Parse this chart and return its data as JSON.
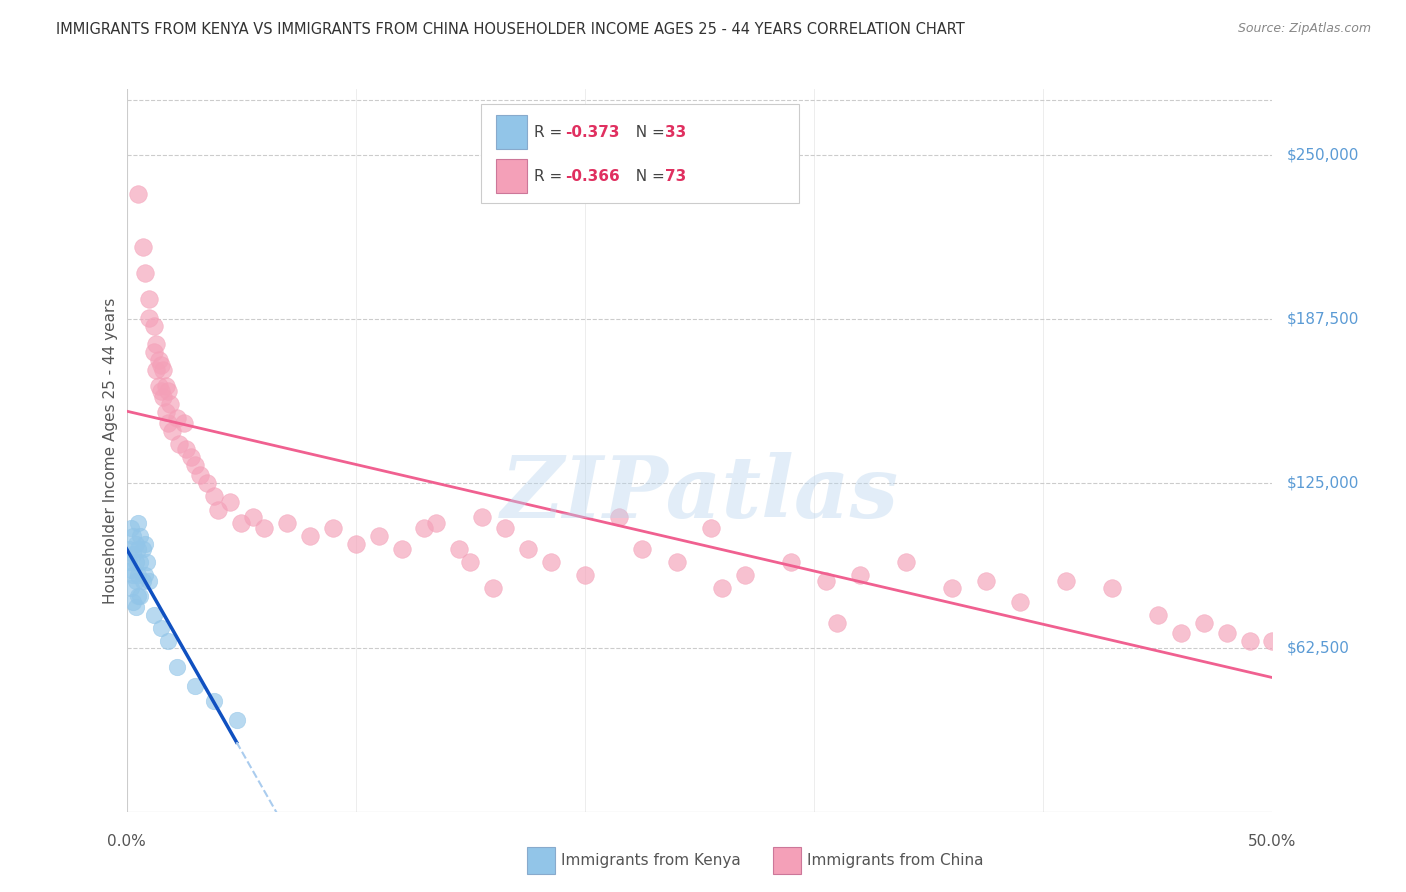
{
  "title": "IMMIGRANTS FROM KENYA VS IMMIGRANTS FROM CHINA HOUSEHOLDER INCOME AGES 25 - 44 YEARS CORRELATION CHART",
  "source": "Source: ZipAtlas.com",
  "ylabel": "Householder Income Ages 25 - 44 years",
  "ytick_labels": [
    "$62,500",
    "$125,000",
    "$187,500",
    "$250,000"
  ],
  "ytick_values": [
    62500,
    125000,
    187500,
    250000
  ],
  "ymin": 0,
  "ymax": 275000,
  "xmin": 0.0,
  "xmax": 0.5,
  "legend_r_kenya": "-0.373",
  "legend_n_kenya": "33",
  "legend_r_china": "-0.366",
  "legend_n_china": "73",
  "kenya_color": "#92C5E8",
  "china_color": "#F4A0B8",
  "kenya_line_color": "#1050C0",
  "china_line_color": "#F06090",
  "kenya_dash_color": "#AACCEE",
  "background_color": "#FFFFFF",
  "watermark_text": "ZIPatlas",
  "bottom_legend_kenya": "Immigrants from Kenya",
  "bottom_legend_china": "Immigrants from China",
  "kenya_x": [
    0.001,
    0.001,
    0.002,
    0.002,
    0.002,
    0.003,
    0.003,
    0.003,
    0.003,
    0.004,
    0.004,
    0.004,
    0.004,
    0.005,
    0.005,
    0.005,
    0.005,
    0.006,
    0.006,
    0.006,
    0.007,
    0.007,
    0.008,
    0.008,
    0.009,
    0.01,
    0.012,
    0.015,
    0.018,
    0.022,
    0.03,
    0.038,
    0.048
  ],
  "kenya_y": [
    100000,
    95000,
    108000,
    92000,
    85000,
    105000,
    98000,
    90000,
    80000,
    102000,
    95000,
    88000,
    78000,
    110000,
    100000,
    90000,
    82000,
    105000,
    95000,
    82000,
    100000,
    88000,
    102000,
    90000,
    95000,
    88000,
    75000,
    70000,
    65000,
    55000,
    48000,
    42000,
    35000
  ],
  "china_x": [
    0.005,
    0.007,
    0.008,
    0.01,
    0.01,
    0.012,
    0.012,
    0.013,
    0.013,
    0.014,
    0.014,
    0.015,
    0.015,
    0.016,
    0.016,
    0.017,
    0.017,
    0.018,
    0.018,
    0.019,
    0.02,
    0.022,
    0.023,
    0.025,
    0.026,
    0.028,
    0.03,
    0.032,
    0.035,
    0.038,
    0.04,
    0.045,
    0.05,
    0.055,
    0.06,
    0.07,
    0.08,
    0.09,
    0.1,
    0.11,
    0.12,
    0.13,
    0.145,
    0.155,
    0.165,
    0.175,
    0.185,
    0.2,
    0.215,
    0.225,
    0.24,
    0.255,
    0.27,
    0.29,
    0.305,
    0.32,
    0.34,
    0.36,
    0.375,
    0.39,
    0.41,
    0.43,
    0.45,
    0.46,
    0.47,
    0.48,
    0.49,
    0.5,
    0.15,
    0.16,
    0.135,
    0.31,
    0.26
  ],
  "china_y": [
    235000,
    215000,
    205000,
    195000,
    188000,
    185000,
    175000,
    178000,
    168000,
    172000,
    162000,
    170000,
    160000,
    168000,
    158000,
    162000,
    152000,
    160000,
    148000,
    155000,
    145000,
    150000,
    140000,
    148000,
    138000,
    135000,
    132000,
    128000,
    125000,
    120000,
    115000,
    118000,
    110000,
    112000,
    108000,
    110000,
    105000,
    108000,
    102000,
    105000,
    100000,
    108000,
    100000,
    112000,
    108000,
    100000,
    95000,
    90000,
    112000,
    100000,
    95000,
    108000,
    90000,
    95000,
    88000,
    90000,
    95000,
    85000,
    88000,
    80000,
    88000,
    85000,
    75000,
    68000,
    72000,
    68000,
    65000,
    65000,
    95000,
    85000,
    110000,
    72000,
    85000
  ]
}
